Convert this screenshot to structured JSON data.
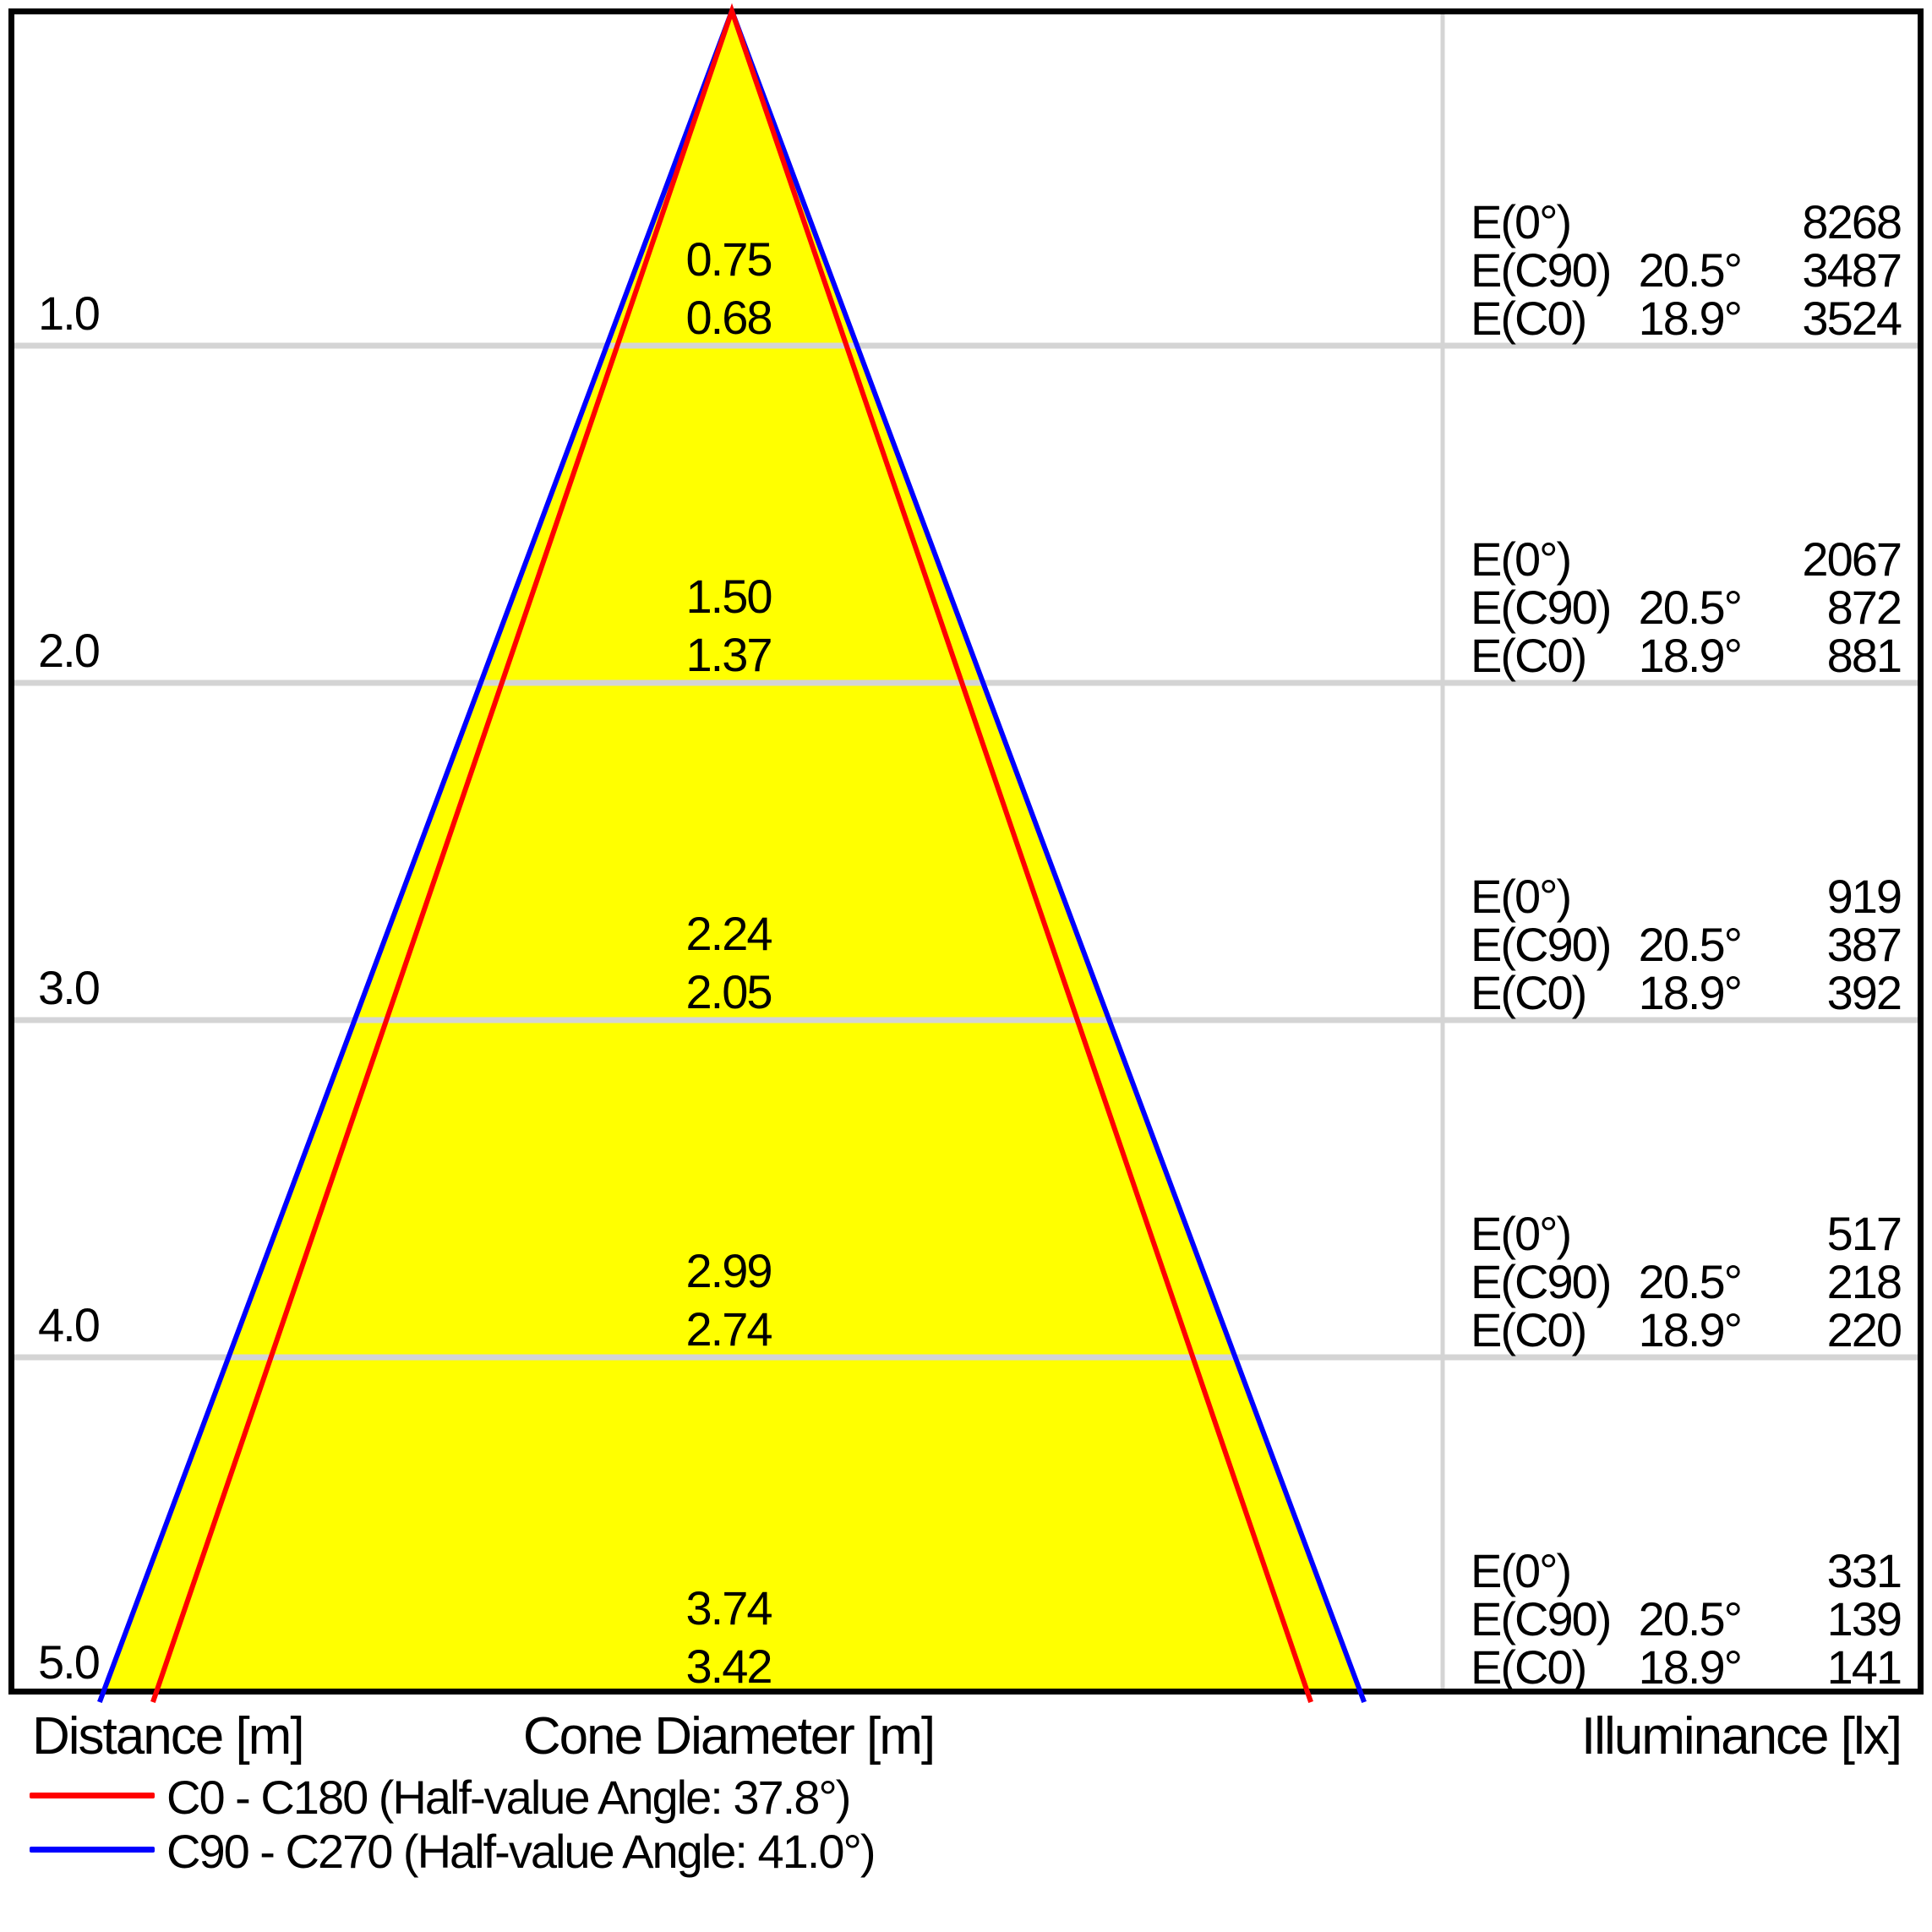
{
  "colors": {
    "background": "#ffffff",
    "border": "#000000",
    "grid": "#d4d4d4",
    "beam_fill": "#ffff00",
    "c0_line": "#ff0000",
    "c90_line": "#0000ff"
  },
  "chart_data": {
    "type": "cone-diagram",
    "description": "Light cone diagram: distance vs cone diameter with illuminance values",
    "axis": {
      "distance_label": "Distance [m]",
      "cone_diameter_label": "Cone Diameter [m]",
      "illuminance_label": "Illuminance [lx]"
    },
    "legend": [
      {
        "label": "C0 - C180 (Half-value Angle: 37.8°)",
        "series": "C0 - C180",
        "half_value_angle_deg": 37.8,
        "color": "#ff0000"
      },
      {
        "label": "C90 - C270 (Half-value Angle: 41.0°)",
        "series": "C90 - C270",
        "half_value_angle_deg": 41.0,
        "color": "#0000ff"
      }
    ],
    "distances_m": [
      1.0,
      2.0,
      3.0,
      4.0,
      5.0
    ],
    "rows": [
      {
        "distance": "1.0",
        "cone_c90": "0.75",
        "cone_c0": "0.68",
        "e": [
          {
            "label": "E(0°)",
            "angle": "",
            "value": "8268"
          },
          {
            "label": "E(C90)",
            "angle": "20.5°",
            "value": "3487"
          },
          {
            "label": "E(C0)",
            "angle": "18.9°",
            "value": "3524"
          }
        ]
      },
      {
        "distance": "2.0",
        "cone_c90": "1.50",
        "cone_c0": "1.37",
        "e": [
          {
            "label": "E(0°)",
            "angle": "",
            "value": "2067"
          },
          {
            "label": "E(C90)",
            "angle": "20.5°",
            "value": "872"
          },
          {
            "label": "E(C0)",
            "angle": "18.9°",
            "value": "881"
          }
        ]
      },
      {
        "distance": "3.0",
        "cone_c90": "2.24",
        "cone_c0": "2.05",
        "e": [
          {
            "label": "E(0°)",
            "angle": "",
            "value": "919"
          },
          {
            "label": "E(C90)",
            "angle": "20.5°",
            "value": "387"
          },
          {
            "label": "E(C0)",
            "angle": "18.9°",
            "value": "392"
          }
        ]
      },
      {
        "distance": "4.0",
        "cone_c90": "2.99",
        "cone_c0": "2.74",
        "e": [
          {
            "label": "E(0°)",
            "angle": "",
            "value": "517"
          },
          {
            "label": "E(C90)",
            "angle": "20.5°",
            "value": "218"
          },
          {
            "label": "E(C0)",
            "angle": "18.9°",
            "value": "220"
          }
        ]
      },
      {
        "distance": "5.0",
        "cone_c90": "3.74",
        "cone_c0": "3.42",
        "e": [
          {
            "label": "E(0°)",
            "angle": "",
            "value": "331"
          },
          {
            "label": "E(C90)",
            "angle": "20.5°",
            "value": "139"
          },
          {
            "label": "E(C0)",
            "angle": "18.9°",
            "value": "141"
          }
        ]
      }
    ]
  }
}
